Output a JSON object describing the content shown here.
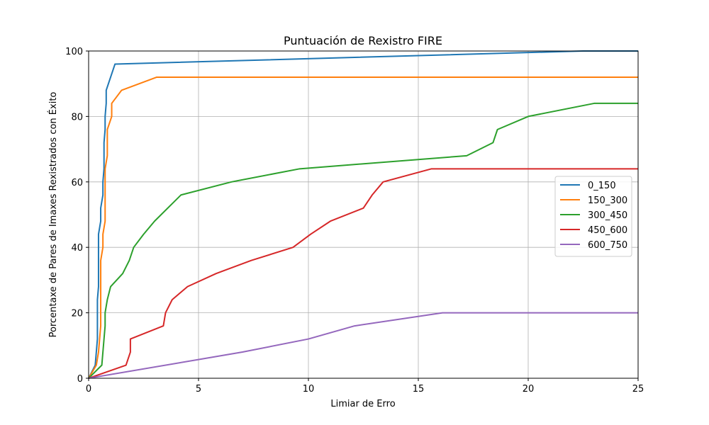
{
  "chart_data": {
    "type": "line",
    "title": "Puntuación de Rexistro FIRE",
    "xlabel": "Limiar de Erro",
    "ylabel": "Porcentaxe de Pares de Imaxes Rexistrados con Éxito",
    "xlim": [
      0,
      25
    ],
    "ylim": [
      0,
      100
    ],
    "xticks": [
      0,
      5,
      10,
      15,
      20,
      25
    ],
    "yticks": [
      0,
      20,
      40,
      60,
      80,
      100
    ],
    "grid": true,
    "legend_position": "right",
    "series": [
      {
        "name": "0_150",
        "color": "#1f77b4",
        "points": [
          [
            0,
            0
          ],
          [
            0.3,
            4
          ],
          [
            0.35,
            8
          ],
          [
            0.4,
            12
          ],
          [
            0.4,
            24
          ],
          [
            0.45,
            28
          ],
          [
            0.45,
            44
          ],
          [
            0.55,
            48
          ],
          [
            0.55,
            52
          ],
          [
            0.65,
            56
          ],
          [
            0.65,
            60
          ],
          [
            0.7,
            64
          ],
          [
            0.7,
            72
          ],
          [
            0.75,
            76
          ],
          [
            0.75,
            80
          ],
          [
            0.8,
            84
          ],
          [
            0.8,
            88
          ],
          [
            1.2,
            96
          ],
          [
            22.5,
            100
          ],
          [
            25,
            100
          ]
        ]
      },
      {
        "name": "150_300",
        "color": "#ff7f0e",
        "points": [
          [
            0,
            0
          ],
          [
            0.35,
            4
          ],
          [
            0.45,
            8
          ],
          [
            0.5,
            12
          ],
          [
            0.55,
            16
          ],
          [
            0.55,
            36
          ],
          [
            0.65,
            40
          ],
          [
            0.65,
            44
          ],
          [
            0.75,
            48
          ],
          [
            0.75,
            64
          ],
          [
            0.85,
            68
          ],
          [
            0.85,
            76
          ],
          [
            1.05,
            80
          ],
          [
            1.05,
            84
          ],
          [
            1.5,
            88
          ],
          [
            3.1,
            92
          ],
          [
            25,
            92
          ]
        ]
      },
      {
        "name": "300_450",
        "color": "#2ca02c",
        "points": [
          [
            0,
            0
          ],
          [
            0.6,
            4
          ],
          [
            0.65,
            8
          ],
          [
            0.7,
            12
          ],
          [
            0.75,
            16
          ],
          [
            0.75,
            20
          ],
          [
            0.85,
            24
          ],
          [
            1.0,
            28
          ],
          [
            1.55,
            32
          ],
          [
            1.85,
            36
          ],
          [
            2.05,
            40
          ],
          [
            2.5,
            44
          ],
          [
            3.0,
            48
          ],
          [
            4.2,
            56
          ],
          [
            6.5,
            60
          ],
          [
            9.6,
            64
          ],
          [
            17.2,
            68
          ],
          [
            18.4,
            72
          ],
          [
            18.6,
            76
          ],
          [
            20.0,
            80
          ],
          [
            23.0,
            84
          ],
          [
            25,
            84
          ]
        ]
      },
      {
        "name": "450_600",
        "color": "#d62728",
        "points": [
          [
            0,
            0
          ],
          [
            1.7,
            4
          ],
          [
            1.9,
            8
          ],
          [
            1.9,
            12
          ],
          [
            3.4,
            16
          ],
          [
            3.5,
            20
          ],
          [
            3.8,
            24
          ],
          [
            4.5,
            28
          ],
          [
            5.8,
            32
          ],
          [
            7.4,
            36
          ],
          [
            9.3,
            40
          ],
          [
            10.1,
            44
          ],
          [
            11.0,
            48
          ],
          [
            12.5,
            52
          ],
          [
            12.9,
            56
          ],
          [
            13.4,
            60
          ],
          [
            15.6,
            64
          ],
          [
            25,
            64
          ]
        ]
      },
      {
        "name": "600_750",
        "color": "#9467bd",
        "points": [
          [
            0,
            0
          ],
          [
            7.0,
            8
          ],
          [
            10.0,
            12
          ],
          [
            12.1,
            16
          ],
          [
            16.1,
            20
          ],
          [
            25,
            20
          ]
        ]
      }
    ]
  }
}
